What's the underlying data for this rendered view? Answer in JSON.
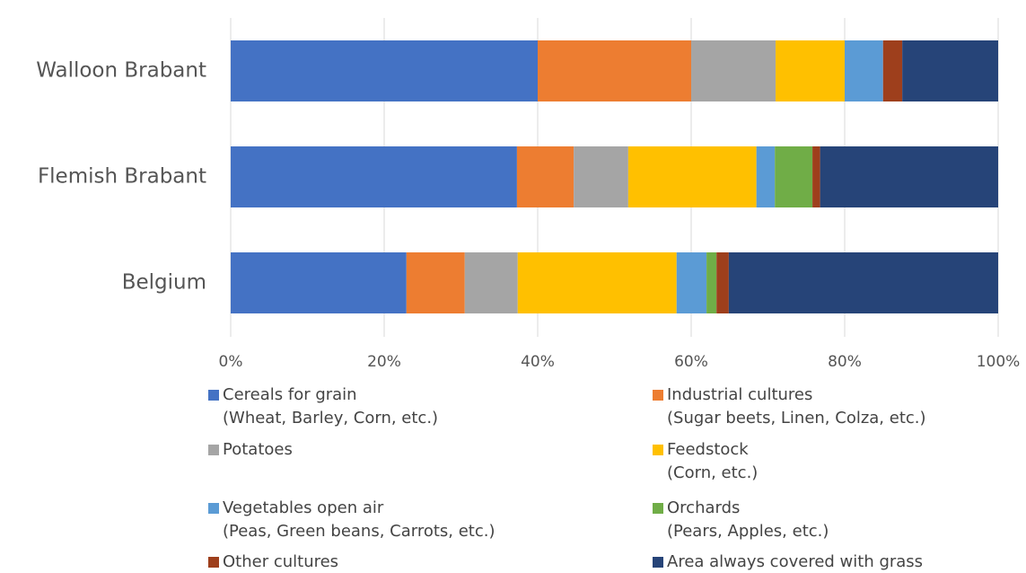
{
  "chart_data": {
    "type": "bar",
    "orientation": "horizontal",
    "stacked": true,
    "categories": [
      "Walloon Brabant",
      "Flemish Brabant",
      "Belgium"
    ],
    "xlim": [
      0,
      100
    ],
    "xticks": [
      {
        "value": 0,
        "label": "0%"
      },
      {
        "value": 20,
        "label": "20%"
      },
      {
        "value": 40,
        "label": "40%"
      },
      {
        "value": 60,
        "label": "60%"
      },
      {
        "value": 80,
        "label": "80%"
      },
      {
        "value": 100,
        "label": "100%"
      }
    ],
    "series": [
      {
        "name": "Cereals for grain",
        "description": "(Wheat, Barley, Corn, etc.)",
        "color": "#4472c4",
        "values": [
          40,
          37.3,
          22.9
        ]
      },
      {
        "name": "Industrial cultures",
        "description": "(Sugar beets, Linen,  Colza, etc.)",
        "color": "#ed7d31",
        "values": [
          20,
          7.4,
          7.6
        ]
      },
      {
        "name": "Potatoes",
        "color": "#a5a5a5",
        "values": [
          11,
          7.1,
          6.9
        ]
      },
      {
        "name": "Feedstock",
        "description": "(Corn, etc.)",
        "color": "#ffc000",
        "values": [
          9,
          16.7,
          20.7
        ]
      },
      {
        "name": "Vegetables open air",
        "description": "(Peas, Green beans, Carrots, etc.)",
        "color": "#5b9bd5",
        "values": [
          5,
          2.4,
          3.9
        ]
      },
      {
        "name": "Orchards",
        "description": "(Pears, Apples, etc.)",
        "color": "#70ad47",
        "values": [
          0,
          4.9,
          1.3
        ]
      },
      {
        "name": "Other cultures",
        "color": "#9e3f1c",
        "values": [
          2.5,
          1,
          1.6
        ]
      },
      {
        "name": "Area always covered with grass",
        "color": "#264478",
        "values": [
          12.5,
          23.2,
          35.1
        ]
      }
    ]
  }
}
